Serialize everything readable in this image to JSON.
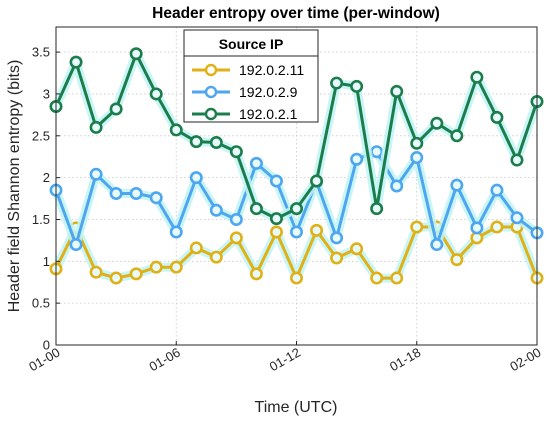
{
  "chart_data": {
    "type": "line",
    "title": "Header entropy over time (per-window)",
    "xlabel": "Time (UTC)",
    "ylabel": "Header field Shannon entropy (bits)",
    "x": [
      "01-00 00:00",
      "01-01",
      "01-02",
      "01-03",
      "01-04",
      "01-05",
      "01-06",
      "01-07",
      "01-08",
      "01-09",
      "01-10",
      "01-11",
      "01-12",
      "01-13",
      "01-14",
      "01-15",
      "01-16",
      "01-17",
      "01-18",
      "01-19",
      "01-20",
      "01-21",
      "01-22",
      "01-23",
      "02-00"
    ],
    "xticks": [
      "01-00",
      "01-06",
      "01-12",
      "01-18",
      "02-00"
    ],
    "xtick_index": [
      0,
      6,
      12,
      18,
      24
    ],
    "ylim": [
      0,
      3.8
    ],
    "yticks": [
      "0",
      "0.5",
      "1",
      "1.5",
      "2",
      "2.5",
      "3",
      "3.5"
    ],
    "ytick_values": [
      0,
      0.5,
      1,
      1.5,
      2,
      2.5,
      3,
      3.5
    ],
    "grid": true,
    "legend_title": "Source IP",
    "legend_position": "top-center",
    "series": [
      {
        "name": "192.0.2.11",
        "color": "#e0b116",
        "values": [
          0.91,
          1.4,
          0.87,
          0.8,
          0.85,
          0.93,
          0.93,
          1.16,
          1.05,
          1.28,
          0.85,
          1.35,
          0.8,
          1.37,
          1.04,
          1.15,
          0.8,
          0.8,
          1.41,
          1.41,
          1.02,
          1.28,
          1.41,
          1.41,
          0.8
        ]
      },
      {
        "name": "192.0.2.9",
        "color": "#4da6ef",
        "values": [
          1.85,
          1.2,
          2.04,
          1.81,
          1.81,
          1.76,
          1.35,
          2.0,
          1.61,
          1.5,
          2.17,
          1.96,
          1.35,
          1.95,
          1.28,
          2.22,
          2.31,
          1.9,
          2.24,
          1.2,
          1.91,
          1.4,
          1.85,
          1.52,
          1.34
        ]
      },
      {
        "name": "192.0.2.1",
        "color": "#1c7d4c",
        "values": [
          2.85,
          3.38,
          2.6,
          2.82,
          3.48,
          3.0,
          2.57,
          2.43,
          2.42,
          2.31,
          1.63,
          1.51,
          1.63,
          1.96,
          3.13,
          3.09,
          1.63,
          3.03,
          2.41,
          2.65,
          2.5,
          3.2,
          2.72,
          2.21,
          2.91
        ]
      }
    ]
  }
}
